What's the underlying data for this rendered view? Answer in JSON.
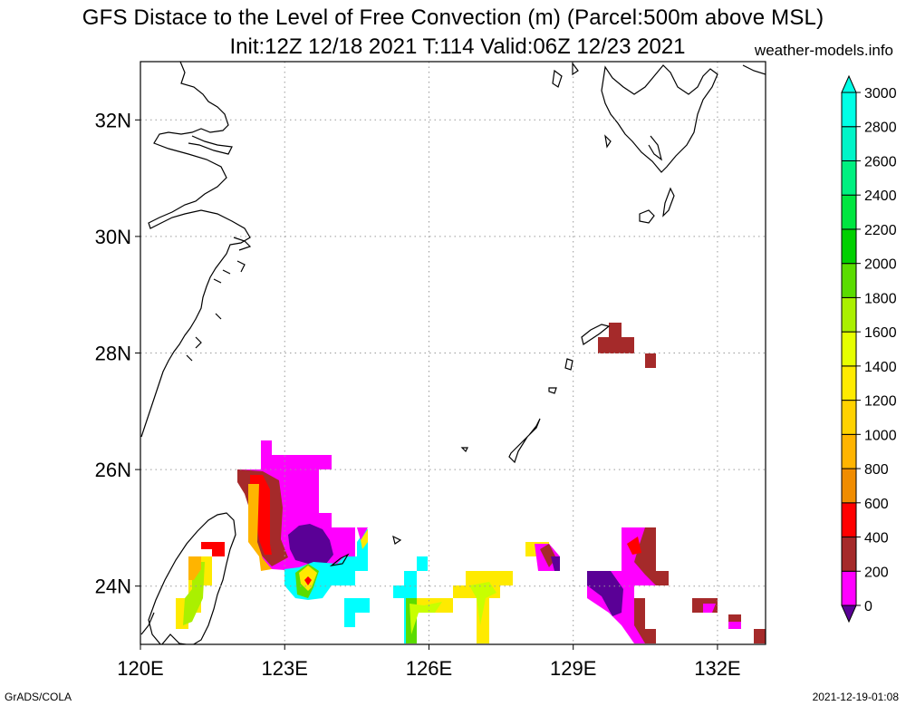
{
  "title": "GFS Distace to the Level of Free Convection (m) (Parcel:500m above MSL)",
  "subtitle": "Init:12Z 12/18 2021 T:114 Valid:06Z 12/23 2021",
  "credit": "weather-models.info",
  "footer_left": "GrADS/COLA",
  "footer_right": "2021-12-19-01:08",
  "map": {
    "lon_range": [
      120,
      133
    ],
    "lat_range": [
      23,
      33
    ],
    "lon_ticks": [
      "120E",
      "123E",
      "126E",
      "129E",
      "132E"
    ],
    "lat_ticks": [
      "24N",
      "26N",
      "28N",
      "30N",
      "32N"
    ],
    "grid": "dotted"
  },
  "colorbar": {
    "labels": [
      "0",
      "200",
      "400",
      "600",
      "800",
      "1000",
      "1200",
      "1400",
      "1600",
      "1800",
      "2000",
      "2200",
      "2400",
      "2600",
      "2800",
      "3000"
    ],
    "colors": [
      "#5a0096",
      "#ff00ff",
      "#a52a2a",
      "#ff0000",
      "#f08c00",
      "#ffb400",
      "#ffd200",
      "#ffeb00",
      "#e6ff00",
      "#aaf000",
      "#5adc00",
      "#00d000",
      "#00e640",
      "#00f080",
      "#00f5c8",
      "#00ffe6"
    ],
    "low_color": "#5a0096",
    "high_color": "#00ffe6"
  },
  "colors": {
    "magenta": "#ff00ff",
    "brown": "#a52a2a",
    "red": "#ff0000",
    "purple": "#5a0096",
    "cyan": "#00ffff",
    "yellow": "#ffea00",
    "orange": "#ffb400",
    "lime": "#c8ff00",
    "green": "#5adc00"
  }
}
